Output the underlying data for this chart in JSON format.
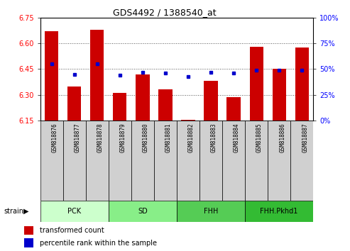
{
  "title": "GDS4492 / 1388540_at",
  "samples": [
    "GSM818876",
    "GSM818877",
    "GSM818878",
    "GSM818879",
    "GSM818880",
    "GSM818881",
    "GSM818882",
    "GSM818883",
    "GSM818884",
    "GSM818885",
    "GSM818886",
    "GSM818887"
  ],
  "bar_values": [
    6.67,
    6.35,
    6.68,
    6.31,
    6.42,
    6.33,
    6.155,
    6.38,
    6.285,
    6.58,
    6.45,
    6.575
  ],
  "dot_values": [
    55,
    45,
    55,
    44,
    47,
    46,
    43,
    47,
    46,
    49,
    49,
    49
  ],
  "bar_color": "#cc0000",
  "dot_color": "#0000cc",
  "ymin": 6.15,
  "ymax": 6.75,
  "yticks": [
    6.15,
    6.3,
    6.45,
    6.6,
    6.75
  ],
  "y2min": 0,
  "y2max": 100,
  "y2ticks": [
    0,
    25,
    50,
    75,
    100
  ],
  "groups": [
    {
      "label": "PCK",
      "start": 0,
      "end": 3,
      "color": "#ccffcc"
    },
    {
      "label": "SD",
      "start": 3,
      "end": 6,
      "color": "#88ee88"
    },
    {
      "label": "FHH",
      "start": 6,
      "end": 9,
      "color": "#55cc55"
    },
    {
      "label": "FHH.Pkhd1",
      "start": 9,
      "end": 12,
      "color": "#33bb33"
    }
  ],
  "strain_label": "strain",
  "legend_bar": "transformed count",
  "legend_dot": "percentile rank within the sample",
  "grid_color": "#555555",
  "tick_box_color": "#d0d0d0"
}
